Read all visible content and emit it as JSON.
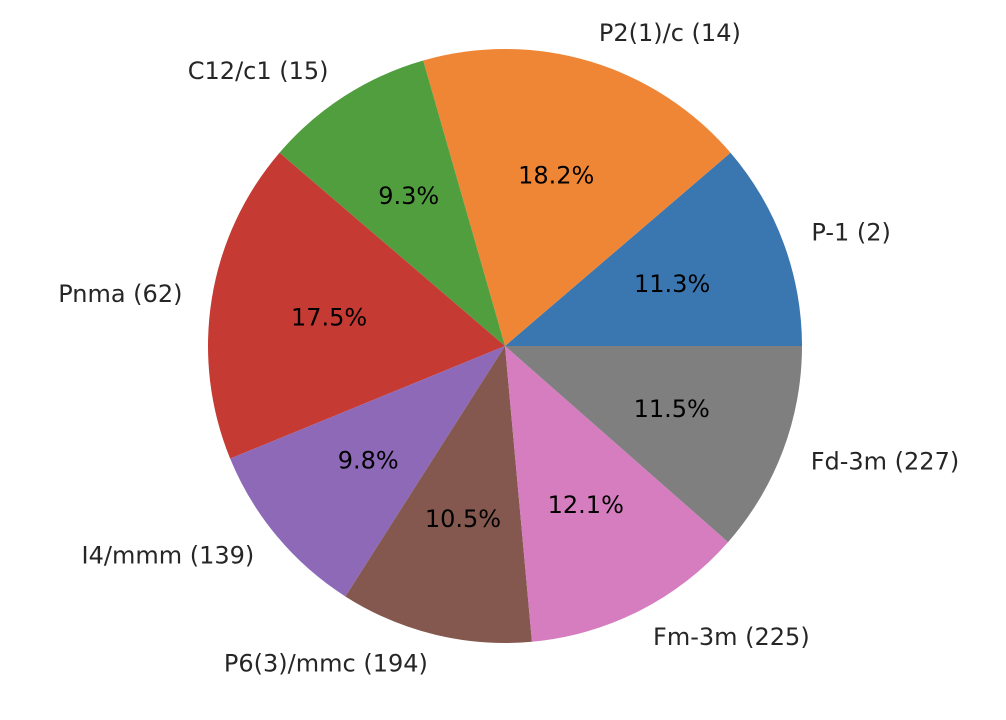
{
  "chart_data": {
    "type": "pie",
    "title": "",
    "start_angle_deg": 0,
    "direction": "counterclockwise",
    "categories": [
      "P-1 (2)",
      "P2(1)/c (14)",
      "C12/c1 (15)",
      "Pnma (62)",
      "I4/mmm (139)",
      "P6(3)/mmc (194)",
      "Fm-3m (225)",
      "Fd-3m (227)"
    ],
    "values": [
      11.3,
      18.2,
      9.3,
      17.5,
      9.8,
      10.5,
      12.1,
      11.5
    ],
    "percent_labels": [
      "11.3%",
      "18.2%",
      "9.3%",
      "17.5%",
      "9.8%",
      "10.5%",
      "12.1%",
      "11.5%"
    ],
    "colors": [
      "#3a76af",
      "#ef8636",
      "#519e3e",
      "#c53a32",
      "#8d69b8",
      "#84584e",
      "#d57dbf",
      "#7f7f7f"
    ],
    "legend": "none"
  }
}
